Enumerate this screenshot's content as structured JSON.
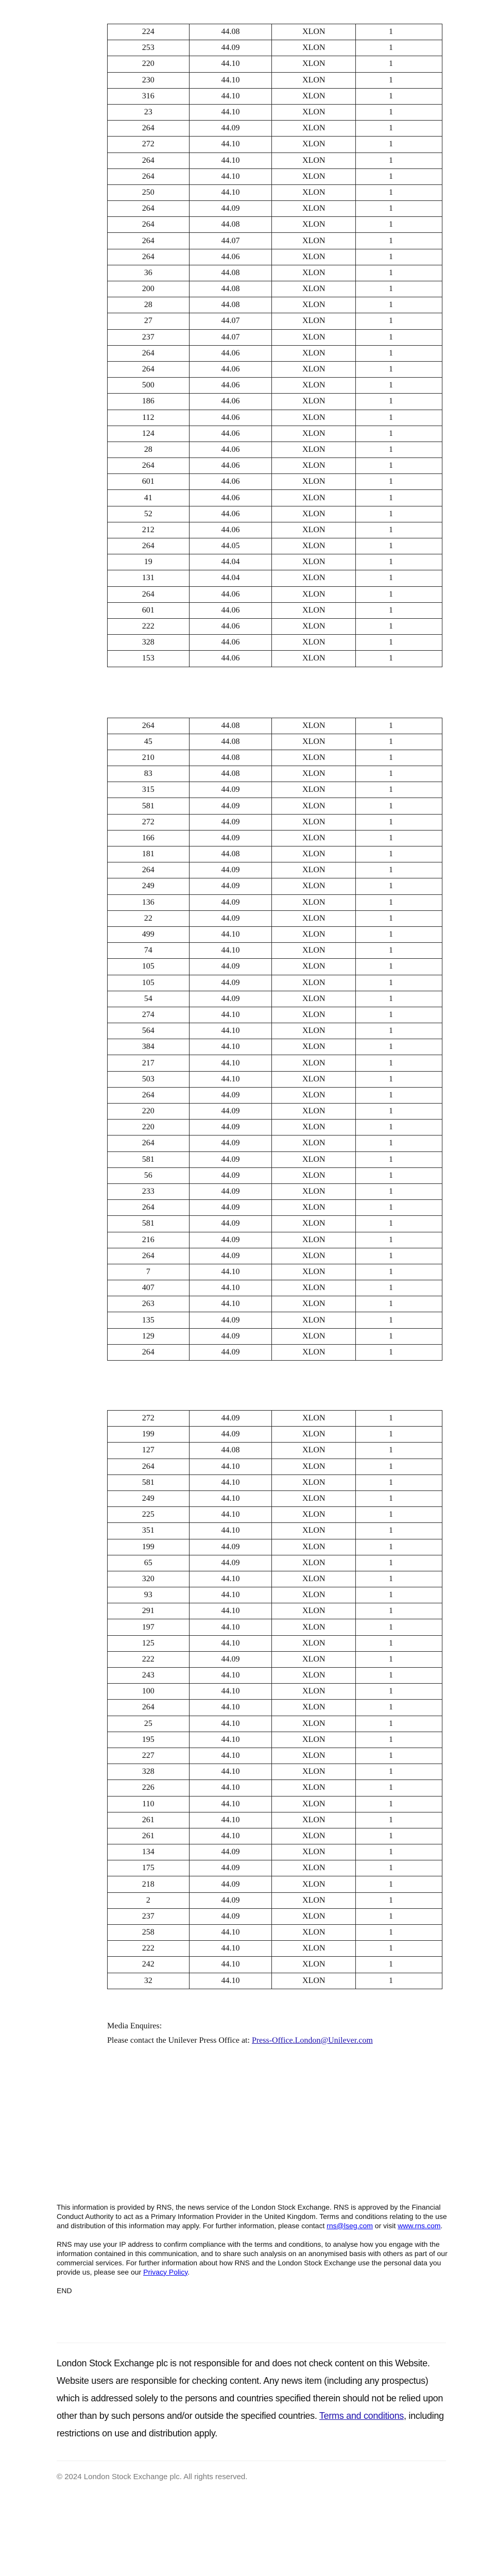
{
  "venue": "XLON",
  "time_fragment": "1",
  "tables": [
    {
      "rows": [
        [
          "224",
          "44.08"
        ],
        [
          "253",
          "44.09"
        ],
        [
          "220",
          "44.10"
        ],
        [
          "230",
          "44.10"
        ],
        [
          "316",
          "44.10"
        ],
        [
          "23",
          "44.10"
        ],
        [
          "264",
          "44.09"
        ],
        [
          "272",
          "44.10"
        ],
        [
          "264",
          "44.10"
        ],
        [
          "264",
          "44.10"
        ],
        [
          "250",
          "44.10"
        ],
        [
          "264",
          "44.09"
        ],
        [
          "264",
          "44.08"
        ],
        [
          "264",
          "44.07"
        ],
        [
          "264",
          "44.06"
        ],
        [
          "36",
          "44.08"
        ],
        [
          "200",
          "44.08"
        ],
        [
          "28",
          "44.08"
        ],
        [
          "27",
          "44.07"
        ],
        [
          "237",
          "44.07"
        ],
        [
          "264",
          "44.06"
        ],
        [
          "264",
          "44.06"
        ],
        [
          "500",
          "44.06"
        ],
        [
          "186",
          "44.06"
        ],
        [
          "112",
          "44.06"
        ],
        [
          "124",
          "44.06"
        ],
        [
          "28",
          "44.06"
        ],
        [
          "264",
          "44.06"
        ],
        [
          "601",
          "44.06"
        ],
        [
          "41",
          "44.06"
        ],
        [
          "52",
          "44.06"
        ],
        [
          "212",
          "44.06"
        ],
        [
          "264",
          "44.05"
        ],
        [
          "19",
          "44.04"
        ],
        [
          "131",
          "44.04"
        ],
        [
          "264",
          "44.06"
        ],
        [
          "601",
          "44.06"
        ],
        [
          "222",
          "44.06"
        ],
        [
          "328",
          "44.06"
        ],
        [
          "153",
          "44.06"
        ]
      ]
    },
    {
      "rows": [
        [
          "264",
          "44.08"
        ],
        [
          "45",
          "44.08"
        ],
        [
          "210",
          "44.08"
        ],
        [
          "83",
          "44.08"
        ],
        [
          "315",
          "44.09"
        ],
        [
          "581",
          "44.09"
        ],
        [
          "272",
          "44.09"
        ],
        [
          "166",
          "44.09"
        ],
        [
          "181",
          "44.08"
        ],
        [
          "264",
          "44.09"
        ],
        [
          "249",
          "44.09"
        ],
        [
          "136",
          "44.09"
        ],
        [
          "22",
          "44.09"
        ],
        [
          "499",
          "44.10"
        ],
        [
          "74",
          "44.10"
        ],
        [
          "105",
          "44.09"
        ],
        [
          "105",
          "44.09"
        ],
        [
          "54",
          "44.09"
        ],
        [
          "274",
          "44.10"
        ],
        [
          "564",
          "44.10"
        ],
        [
          "384",
          "44.10"
        ],
        [
          "217",
          "44.10"
        ],
        [
          "503",
          "44.10"
        ],
        [
          "264",
          "44.09"
        ],
        [
          "220",
          "44.09"
        ],
        [
          "220",
          "44.09"
        ],
        [
          "264",
          "44.09"
        ],
        [
          "581",
          "44.09"
        ],
        [
          "56",
          "44.09"
        ],
        [
          "233",
          "44.09"
        ],
        [
          "264",
          "44.09"
        ],
        [
          "581",
          "44.09"
        ],
        [
          "216",
          "44.09"
        ],
        [
          "264",
          "44.09"
        ],
        [
          "7",
          "44.10"
        ],
        [
          "407",
          "44.10"
        ],
        [
          "263",
          "44.10"
        ],
        [
          "135",
          "44.09"
        ],
        [
          "129",
          "44.09"
        ],
        [
          "264",
          "44.09"
        ]
      ]
    },
    {
      "rows": [
        [
          "272",
          "44.09"
        ],
        [
          "199",
          "44.09"
        ],
        [
          "127",
          "44.08"
        ],
        [
          "264",
          "44.10"
        ],
        [
          "581",
          "44.10"
        ],
        [
          "249",
          "44.10"
        ],
        [
          "225",
          "44.10"
        ],
        [
          "351",
          "44.10"
        ],
        [
          "199",
          "44.09"
        ],
        [
          "65",
          "44.09"
        ],
        [
          "320",
          "44.10"
        ],
        [
          "93",
          "44.10"
        ],
        [
          "291",
          "44.10"
        ],
        [
          "197",
          "44.10"
        ],
        [
          "125",
          "44.10"
        ],
        [
          "222",
          "44.09"
        ],
        [
          "243",
          "44.10"
        ],
        [
          "100",
          "44.10"
        ],
        [
          "264",
          "44.10"
        ],
        [
          "25",
          "44.10"
        ],
        [
          "195",
          "44.10"
        ],
        [
          "227",
          "44.10"
        ],
        [
          "328",
          "44.10"
        ],
        [
          "226",
          "44.10"
        ],
        [
          "110",
          "44.10"
        ],
        [
          "261",
          "44.10"
        ],
        [
          "261",
          "44.10"
        ],
        [
          "134",
          "44.09"
        ],
        [
          "175",
          "44.09"
        ],
        [
          "218",
          "44.09"
        ],
        [
          "2",
          "44.09"
        ],
        [
          "237",
          "44.09"
        ],
        [
          "258",
          "44.10"
        ],
        [
          "222",
          "44.10"
        ],
        [
          "242",
          "44.10"
        ],
        [
          "32",
          "44.10"
        ]
      ]
    }
  ],
  "media": {
    "heading": "Media Enquires:",
    "contact_text": "Please contact the Unilever Press Office at: ",
    "email": "Press-Office.London@Unilever.com"
  },
  "rns": {
    "p1_text": "This information is provided by RNS, the news service of the London Stock Exchange. RNS is approved by the Financial Conduct Authority to act as a Primary Information Provider in the United Kingdom. Terms and conditions relating to the use and distribution of this information may apply. For further information, please contact ",
    "p1_email": "rns@lseg.com",
    "p1_mid": " or visit ",
    "p1_site": "www.rns.com",
    "p1_end": ".",
    "p2_text": "RNS may use your IP address to confirm compliance with the terms and conditions, to analyse how you engage with the information contained in this communication, and to share such analysis on an anonymised basis with others as part of our commercial services. For further information about how RNS and the London Stock Exchange use the personal data you provide us, please see our ",
    "p2_link": "Privacy Policy",
    "p2_end": ".",
    "end": "END"
  },
  "disclaimer": {
    "text": "London Stock Exchange plc is not responsible for and does not check content on this Website. Website users are responsible for checking content. Any news item (including any prospectus) which is addressed solely to the persons and countries specified therein should not be relied upon other than by such persons and/or outside the specified countries. ",
    "link": "Terms and conditions",
    "end": ", including restrictions on use and distribution apply."
  },
  "copyright": "© 2024 London Stock Exchange plc. All rights reserved.",
  "colors": {
    "link": "#1a0dab",
    "border": "#222222",
    "muted": "#777777"
  }
}
